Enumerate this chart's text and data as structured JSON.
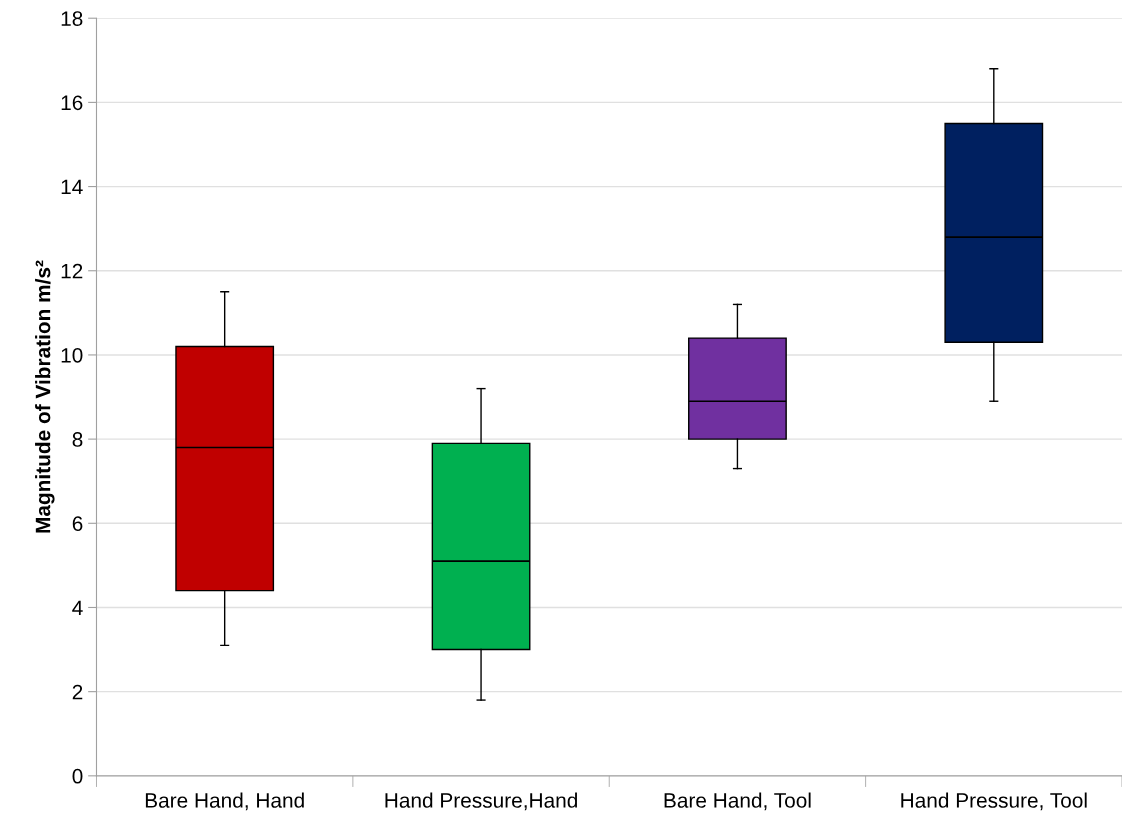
{
  "chart_data": {
    "type": "box",
    "ylabel": "Magnitude of Vibration m/s²",
    "categories": [
      "Bare Hand, Hand",
      "Hand Pressure,Hand",
      "Bare Hand, Tool",
      "Hand Pressure, Tool"
    ],
    "colors": [
      "#c00000",
      "#00b050",
      "#7030a0",
      "#002060"
    ],
    "boxes": [
      {
        "low": 3.1,
        "q1": 4.4,
        "median": 7.8,
        "q3": 10.2,
        "high": 11.5
      },
      {
        "low": 1.8,
        "q1": 3.0,
        "median": 5.1,
        "q3": 7.9,
        "high": 9.2
      },
      {
        "low": 7.3,
        "q1": 8.0,
        "median": 8.9,
        "q3": 10.4,
        "high": 11.2
      },
      {
        "low": 8.9,
        "q1": 10.3,
        "median": 12.8,
        "q3": 15.5,
        "high": 16.8
      }
    ],
    "ylim": [
      0,
      18
    ],
    "yticks": [
      0,
      2,
      4,
      6,
      8,
      10,
      12,
      14,
      16,
      18
    ],
    "grid": "y"
  }
}
